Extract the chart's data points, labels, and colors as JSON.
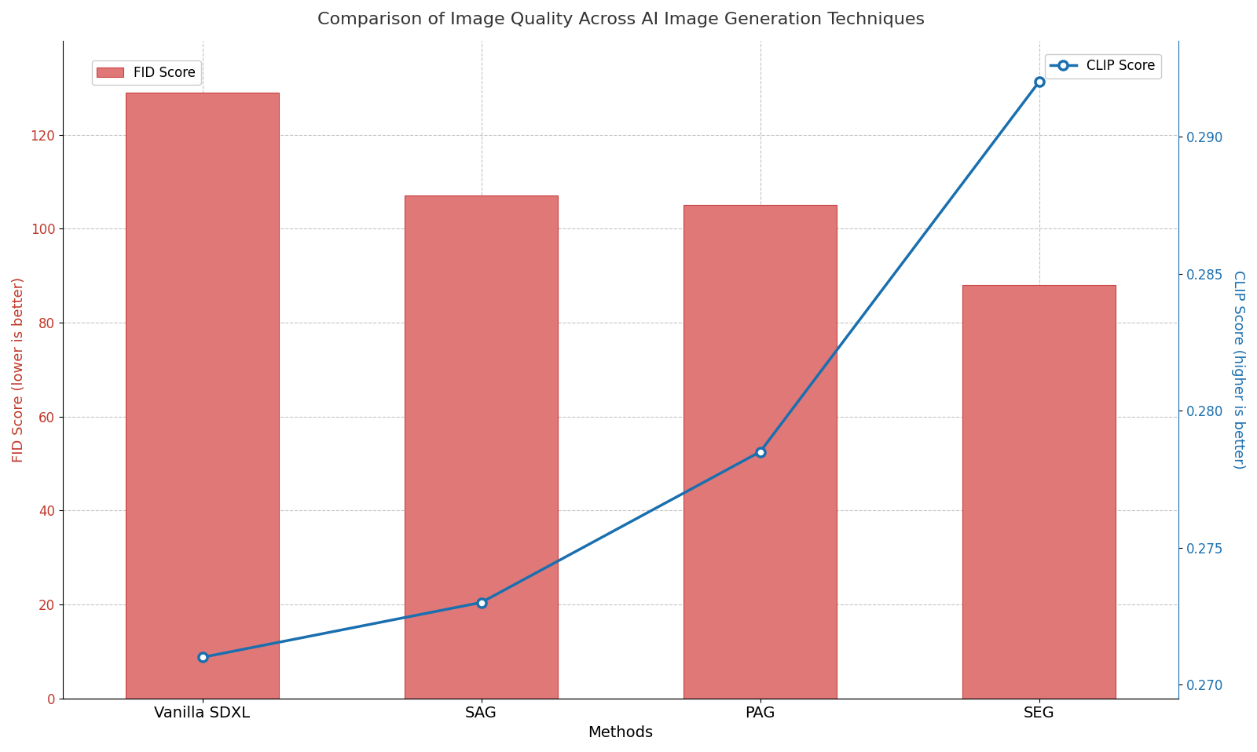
{
  "categories": [
    "Vanilla SDXL",
    "SAG",
    "PAG",
    "SEG"
  ],
  "fid_scores": [
    129,
    107,
    105,
    88
  ],
  "clip_scores": [
    0.271,
    0.273,
    0.2785,
    0.292
  ],
  "bar_color": "#e07878",
  "bar_edgecolor": "#c84040",
  "line_color": "#1a6faf",
  "marker_color": "#1a6faf",
  "title": "Comparison of Image Quality Across AI Image Generation Techniques",
  "xlabel": "Methods",
  "ylabel_left": "FID Score (lower is better)",
  "ylabel_right": "CLIP Score (higher is better)",
  "fid_ylim": [
    0,
    140
  ],
  "clip_ylim": [
    0.2695,
    0.2935
  ],
  "clip_yticks": [
    0.27,
    0.275,
    0.28,
    0.285,
    0.29
  ],
  "fid_yticks": [
    0,
    20,
    40,
    60,
    80,
    100,
    120
  ],
  "background_color": "#ffffff",
  "grid_color": "#aaaaaa",
  "title_fontsize": 16,
  "label_fontsize": 13,
  "tick_fontsize": 12,
  "legend_fontsize": 12
}
